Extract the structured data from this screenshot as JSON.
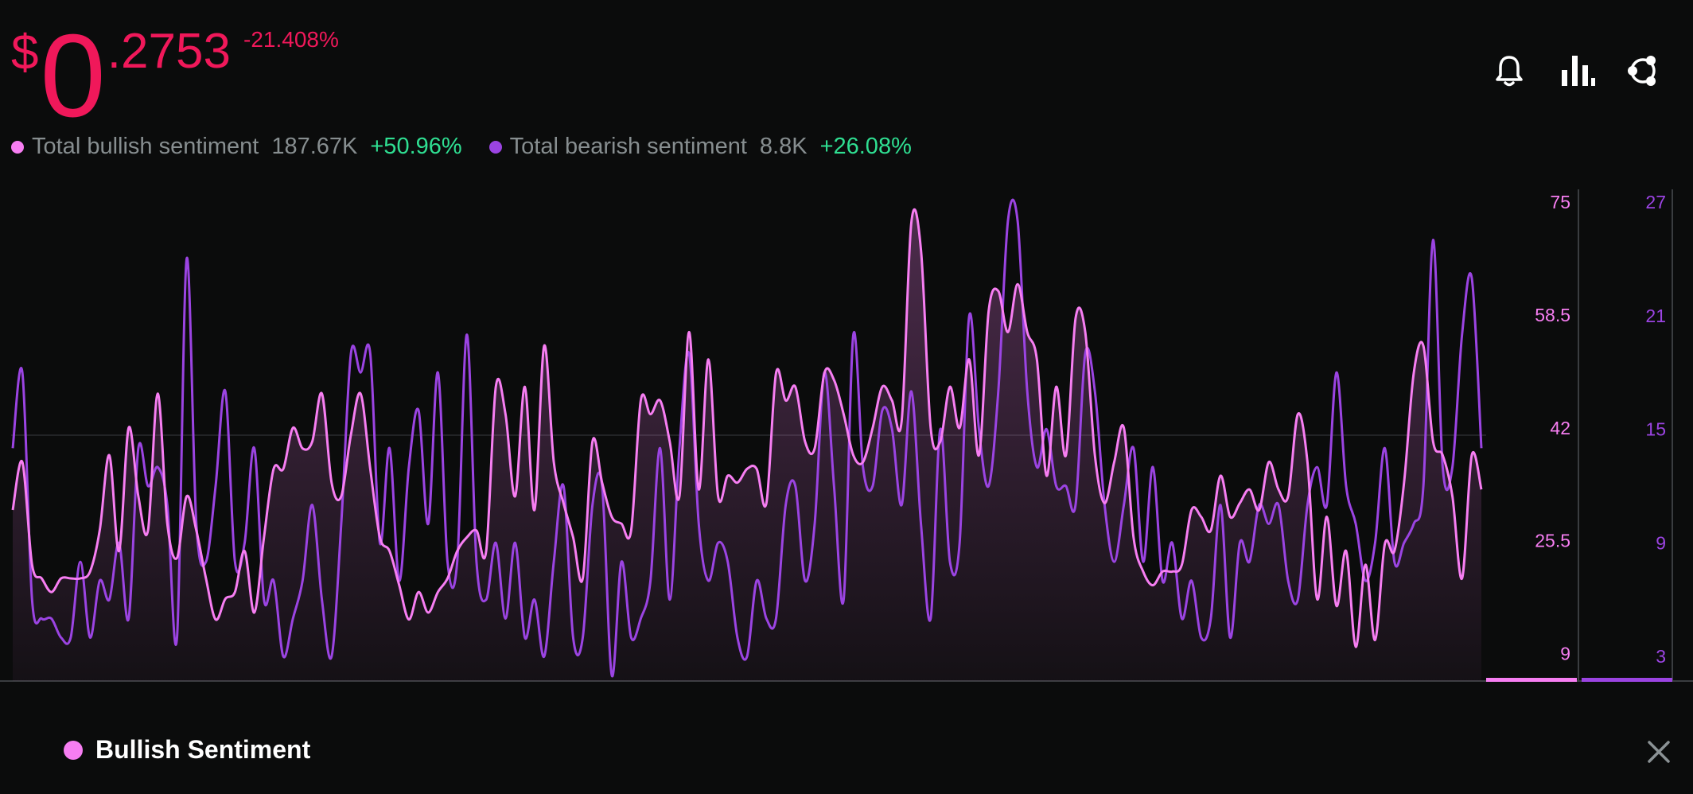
{
  "price": {
    "currency": "$",
    "integer": "0",
    "fraction": ".2753",
    "change": "-21.408%"
  },
  "legend": [
    {
      "label": "Total bullish sentiment",
      "value": "187.67K",
      "change": "+50.96%",
      "color": "#f77ef2"
    },
    {
      "label": "Total bearish sentiment",
      "value": "8.8K",
      "change": "+26.08%",
      "color": "#9b44e2"
    }
  ],
  "icons": [
    "bell-icon",
    "bar-chart-icon",
    "share-icon"
  ],
  "footer": {
    "label": "Bullish Sentiment",
    "close_icon": "close-icon"
  },
  "colors": {
    "bullish": "#f77ef2",
    "bearish": "#9b44e2",
    "price": "#f0185a",
    "positive": "#2fdf92",
    "background": "#0b0c0c"
  },
  "chart_data": {
    "type": "line",
    "series": [
      {
        "name": "Total bullish sentiment",
        "axis": "left",
        "values": [
          30,
          37,
          22,
          20,
          18,
          20,
          20,
          20,
          21,
          27,
          38,
          24,
          42,
          32,
          27,
          47,
          28,
          23,
          32,
          27,
          20,
          14,
          17,
          18,
          24,
          15,
          26,
          36,
          36,
          42,
          39,
          40,
          47,
          34,
          32,
          41,
          47,
          36,
          26,
          24,
          19,
          14,
          18,
          15,
          18,
          20,
          24,
          26,
          27,
          24,
          48,
          44,
          32,
          48,
          30,
          54,
          37,
          31,
          26,
          20,
          40,
          34,
          29,
          28,
          27,
          46,
          44,
          46,
          40,
          32,
          56,
          33,
          52,
          32,
          35,
          34,
          36,
          36,
          31,
          50,
          46,
          48,
          40,
          39,
          50,
          49,
          44,
          38,
          37,
          42,
          48,
          46,
          43,
          72,
          68,
          42,
          40,
          48,
          42,
          52,
          38,
          59,
          62,
          56,
          63,
          56,
          52,
          35,
          48,
          38,
          58,
          56,
          38,
          31,
          37,
          42,
          26,
          21,
          19,
          21,
          21,
          22,
          30,
          29,
          27,
          35,
          29,
          31,
          33,
          30,
          37,
          33,
          32,
          44,
          37,
          17,
          29,
          16,
          24,
          10,
          22,
          11,
          25,
          24,
          34,
          50,
          54,
          40,
          38,
          32,
          20,
          38,
          33
        ]
      },
      {
        "name": "Total bearish sentiment",
        "axis": "right",
        "values": [
          14,
          18,
          6,
          5,
          5,
          4,
          4,
          8,
          4,
          7,
          6,
          9,
          5,
          14,
          12,
          13,
          11,
          4,
          24,
          10,
          8,
          12,
          17,
          8,
          9,
          14,
          6,
          7,
          3,
          5,
          7,
          11,
          6,
          3,
          10,
          19,
          18,
          19,
          9,
          14,
          7,
          13,
          16,
          10,
          18,
          8,
          8,
          20,
          8,
          6,
          9,
          5,
          9,
          4,
          6,
          3,
          8,
          12,
          4,
          4,
          11,
          12,
          2,
          8,
          4,
          5,
          7,
          14,
          6,
          14,
          19,
          10,
          7,
          9,
          8,
          4,
          3,
          7,
          5,
          5,
          11,
          12,
          7,
          10,
          18,
          12,
          6,
          20,
          13,
          12,
          16,
          15,
          11,
          17,
          10,
          5,
          15,
          8,
          9,
          21,
          15,
          12,
          17,
          26,
          26,
          17,
          13,
          15,
          12,
          12,
          11,
          19,
          17,
          11,
          8,
          11,
          14,
          8,
          13,
          7,
          9,
          5,
          7,
          4,
          5,
          11,
          4,
          9,
          8,
          11,
          10,
          11,
          7,
          6,
          11,
          13,
          11,
          18,
          12,
          10,
          7,
          9,
          14,
          8,
          9,
          10,
          12,
          25,
          13,
          13,
          20,
          23,
          14
        ]
      }
    ],
    "y_left": {
      "ticks": [
        9,
        25.5,
        42,
        58.5,
        75
      ],
      "range": [
        5,
        75
      ]
    },
    "y_right": {
      "ticks": [
        3,
        9,
        15,
        21,
        27
      ],
      "range": [
        1.7,
        27
      ]
    }
  }
}
